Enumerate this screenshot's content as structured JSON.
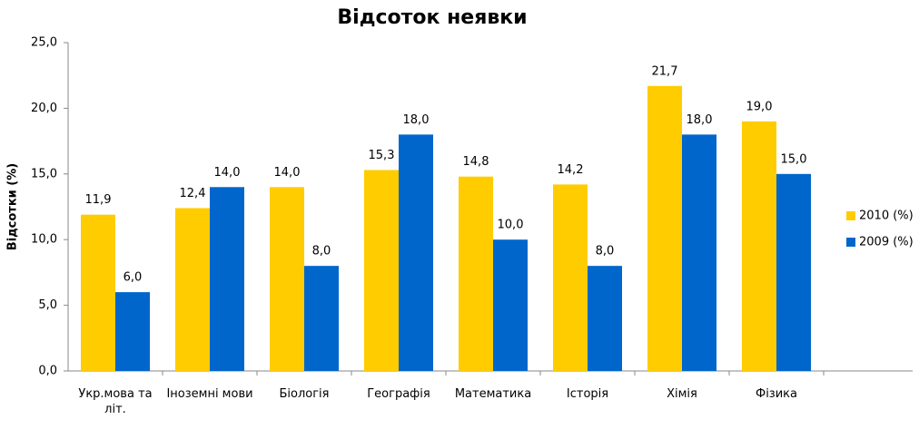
{
  "chart_data": {
    "type": "bar",
    "title": "Відсоток неявки",
    "y_label": "Відсотки (%)",
    "categories": [
      "Укр.мова та літ.",
      "Іноземні мови",
      "Біологія",
      "Географія",
      "Математика",
      "Історія",
      "Хімія",
      "Фізика"
    ],
    "series": [
      {
        "name": "2010 (%)",
        "color": "#FFCC00",
        "values": [
          11.9,
          12.4,
          14.0,
          15.3,
          14.8,
          14.2,
          21.7,
          19.0
        ],
        "value_labels": [
          "11,9",
          "12,4",
          "14,0",
          "15,3",
          "14,8",
          "14,2",
          "21,7",
          "19,0"
        ]
      },
      {
        "name": "2009 (%)",
        "color": "#0066CC",
        "values": [
          6.0,
          14.0,
          8.0,
          18.0,
          10.0,
          8.0,
          18.0,
          15.0
        ],
        "value_labels": [
          "6,0",
          "14,0",
          "8,0",
          "18,0",
          "10,0",
          "8,0",
          "18,0",
          "15,0"
        ]
      }
    ],
    "ylim": [
      0,
      25
    ],
    "yticks": [
      {
        "value": 0,
        "label": "0,0"
      },
      {
        "value": 5,
        "label": "5,0"
      },
      {
        "value": 10,
        "label": "10,0"
      },
      {
        "value": 15,
        "label": "15,0"
      },
      {
        "value": 20,
        "label": "20,0"
      },
      {
        "value": 25,
        "label": "25,0"
      }
    ],
    "legend": "right"
  }
}
